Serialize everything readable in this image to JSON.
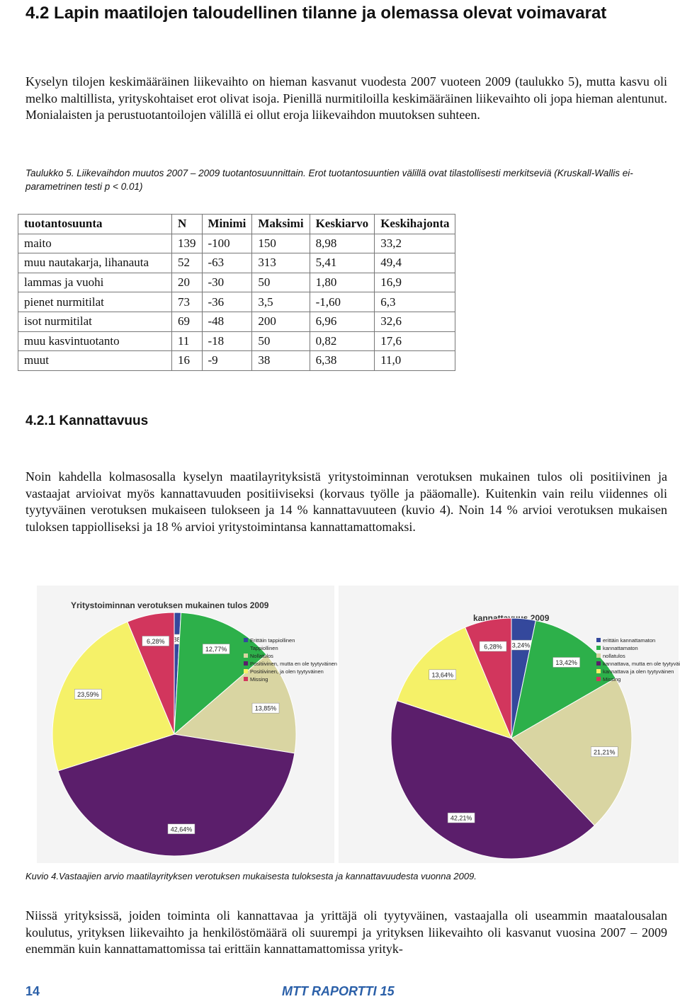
{
  "heading": "4.2 Lapin maatilojen taloudellinen tilanne ja olemassa olevat voimavarat",
  "paragraphs": [
    "Kyselyn tilojen keskimääräinen liikevaihto on hieman kasvanut vuodesta 2007 vuoteen 2009 (taulukko 5), mutta kasvu oli melko maltillista, yrityskohtaiset erot olivat isoja. Pienillä nurmitiloilla keskimääräinen liikevaihto oli jopa hieman alentunut. Monialaisten ja perustuotantoilojen välillä ei ollut eroja liikevaihdon muutoksen suhteen.",
    "Noin kahdella kolmasosalla kyselyn maatilayrityksistä yritystoiminnan verotuksen mukainen tulos oli positiivinen ja vastaajat arvioivat myös kannattavuuden positiiviseksi (korvaus työlle ja pääomalle). Kuitenkin vain reilu viidennes oli tyytyväinen verotuksen mukaiseen tulokseen ja 14 % kannattavuuteen (kuvio 4). Noin 14 % arvioi verotuksen mukaisen tuloksen tappiolliseksi ja 18 % arvioi yritystoimintansa kannattamattomaksi.",
    "Niissä yrityksissä, joiden toiminta oli kannattavaa ja yrittäjä oli tyytyväinen, vastaajalla oli useammin maatalousalan koulutus, yrityksen liikevaihto ja henkilöstömäärä oli suurempi ja yrityksen liikevaihto oli kasvanut vuosina 2007 – 2009 enemmän kuin kannattamattomissa tai erittäin kannattamattomissa yrityk-"
  ],
  "table": {
    "caption": "Taulukko 5. Liikevaihdon muutos 2007 – 2009 tuotantosuunnittain. Erot tuotantosuuntien välillä ovat tilastollisesti merkitseviä (Kruskall-Wallis ei-parametrinen testi p < 0.01)",
    "header": [
      "tuotantosuunta",
      "N",
      "Minimi",
      "Maksimi",
      "Keskiarvo",
      "Keskihajonta"
    ],
    "rows": [
      [
        "maito",
        "139",
        "-100",
        "150",
        "8,98",
        "33,2"
      ],
      [
        "muu nautakarja, lihanauta",
        "52",
        "-63",
        "313",
        "5,41",
        "49,4"
      ],
      [
        "lammas ja vuohi",
        "20",
        "-30",
        "50",
        "1,80",
        "16,9"
      ],
      [
        "pienet nurmitilat",
        "73",
        "-36",
        "3,5",
        "-1,60",
        "6,3"
      ],
      [
        "isot nurmitilat",
        "69",
        "-48",
        "200",
        "6,96",
        "32,6"
      ],
      [
        "muu kasvintuotanto",
        "11",
        "-18",
        "50",
        "0,82",
        "17,6"
      ],
      [
        "muut",
        "16",
        "-9",
        "38",
        "6,38",
        "11,0"
      ]
    ]
  },
  "subheading": "4.2.1 Kannattavuus",
  "figure_caption": "Kuvio 4.Vastaajien arvio maatilayrityksen verotuksen mukaisesta tuloksesta ja kannattavuudesta vuonna 2009.",
  "footer": {
    "page_number": "14",
    "publication": "MTT RAPORTTI 15"
  },
  "chart_data": [
    {
      "type": "pie",
      "title": "Yritystoiminnan verotuksen mukainen tulos 2009",
      "categories": [
        "Erittäin tappiollinen",
        "Tappiollinen",
        "Nollatulos",
        "Positiivinen, mutta en ole tyytyväinen",
        "Positiivinen, ja olen tyytyväinen",
        "Missing"
      ],
      "values": [
        0.88,
        12.77,
        13.85,
        42.64,
        23.59,
        6.28
      ],
      "value_labels": [
        "0,88%",
        "12,77%",
        "13,85%",
        "42,64%",
        "23,59%",
        "6,28%"
      ],
      "colors": [
        "#34489c",
        "#2db04a",
        "#d9d5a2",
        "#5b1e6b",
        "#f5f168",
        "#d2365d"
      ]
    },
    {
      "type": "pie",
      "title": "kannattavuus 2009",
      "categories": [
        "erittäin kannattamaton",
        "kannattamaton",
        "nollatulos",
        "kannattava, mutta en ole tyytyväinen",
        "kannattava ja olen tyytyväinen",
        "Missing"
      ],
      "values": [
        3.24,
        13.42,
        21.21,
        42.21,
        13.64,
        6.28
      ],
      "value_labels": [
        "3,24%",
        "13,42%",
        "21,21%",
        "42,21%",
        "13,64%",
        "6,28%"
      ],
      "colors": [
        "#34489c",
        "#2db04a",
        "#d9d5a2",
        "#5b1e6b",
        "#f5f168",
        "#d2365d"
      ]
    }
  ]
}
